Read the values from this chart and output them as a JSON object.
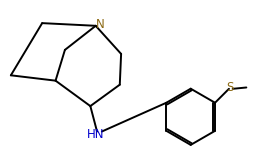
{
  "figure_width": 2.69,
  "figure_height": 1.64,
  "dpi": 100,
  "background_color": "#ffffff",
  "bond_color": "#000000",
  "N_color": "#8b6914",
  "S_color": "#8b6914",
  "NH_color": "#0000cc",
  "line_width": 1.4,
  "font_size_atom": 8.5,
  "xlim": [
    0.0,
    10.0
  ],
  "ylim": [
    0.0,
    6.0
  ]
}
